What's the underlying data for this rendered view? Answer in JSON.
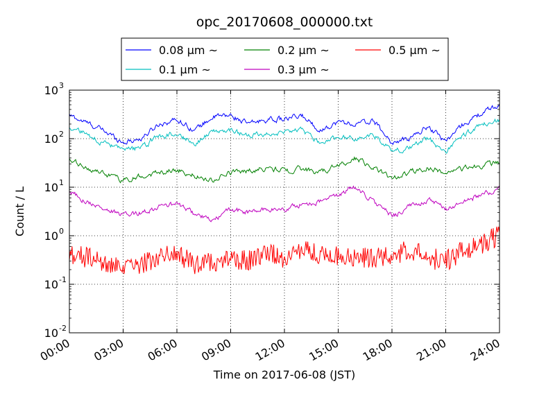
{
  "chart_data": {
    "type": "line",
    "title": "opc_20170608_000000.txt",
    "xlabel": "Time on 2017-06-08 (JST)",
    "ylabel": "Count / L",
    "yscale": "log",
    "ylim": [
      0.01,
      1000
    ],
    "xlim": [
      "2017-06-08 00:00",
      "2017-06-09 00:00"
    ],
    "grid": true,
    "legend_position": "top-center",
    "x_ticks": [
      "00:00",
      "03:00",
      "06:00",
      "09:00",
      "12:00",
      "15:00",
      "18:00",
      "21:00",
      "24:00"
    ],
    "y_ticks": [
      {
        "base": "10",
        "exp": "-2"
      },
      {
        "base": "10",
        "exp": "-1"
      },
      {
        "base": "10",
        "exp": "0"
      },
      {
        "base": "10",
        "exp": "1"
      },
      {
        "base": "10",
        "exp": "2"
      },
      {
        "base": "10",
        "exp": "3"
      }
    ],
    "x_hours": [
      0,
      1,
      2,
      3,
      4,
      5,
      6,
      7,
      8,
      9,
      10,
      11,
      12,
      13,
      14,
      15,
      16,
      17,
      18,
      19,
      20,
      21,
      22,
      23,
      24
    ],
    "series": [
      {
        "name": "0.08 μm ~",
        "color": "#0000ff",
        "values": [
          300,
          210,
          140,
          85,
          100,
          200,
          250,
          150,
          280,
          300,
          200,
          250,
          250,
          290,
          150,
          220,
          200,
          230,
          80,
          100,
          180,
          90,
          200,
          330,
          500
        ]
      },
      {
        "name": "0.1 μm ~",
        "color": "#00bfbf",
        "values": [
          170,
          120,
          80,
          55,
          65,
          110,
          130,
          80,
          140,
          150,
          110,
          130,
          130,
          150,
          80,
          110,
          100,
          120,
          55,
          65,
          100,
          55,
          120,
          190,
          230
        ]
      },
      {
        "name": "0.2 μm ~",
        "color": "#008000",
        "values": [
          35,
          25,
          18,
          14,
          17,
          20,
          23,
          17,
          14,
          20,
          22,
          25,
          22,
          24,
          20,
          28,
          40,
          25,
          15,
          20,
          25,
          20,
          24,
          28,
          33
        ]
      },
      {
        "name": "0.3 μm ~",
        "color": "#bf00bf",
        "values": [
          8,
          5,
          3.5,
          2.6,
          3,
          4,
          4.5,
          2.8,
          2,
          3.5,
          3,
          3.5,
          3.5,
          4.5,
          5,
          7,
          10,
          5,
          2.5,
          4,
          5.5,
          3.5,
          5,
          7,
          9
        ]
      },
      {
        "name": "0.5 μm ~",
        "color": "#ff0000",
        "values": [
          0.45,
          0.35,
          0.25,
          0.2,
          0.25,
          0.4,
          0.45,
          0.25,
          0.3,
          0.35,
          0.3,
          0.45,
          0.35,
          0.5,
          0.4,
          0.4,
          0.35,
          0.35,
          0.4,
          0.5,
          0.35,
          0.3,
          0.5,
          0.7,
          1.0
        ]
      }
    ]
  }
}
